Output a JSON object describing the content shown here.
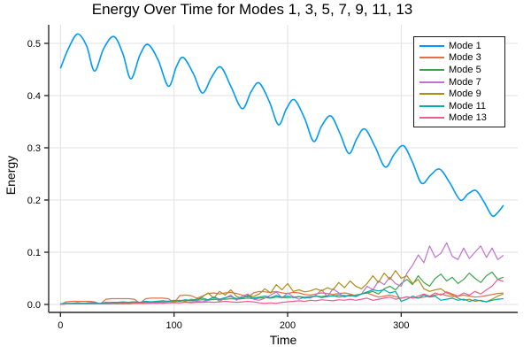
{
  "figure": {
    "background": "#ffffff",
    "grid_color": "#e2e2e6",
    "spine_color": "#2a2a2a",
    "text_color": "#000000"
  },
  "chart_data": {
    "type": "line",
    "title": "Energy Over Time for Modes 1, 3, 5, 7, 9, 11, 13",
    "xlabel": "Time",
    "ylabel": "Energy",
    "xlim": [
      -10.4,
      402.6
    ],
    "ylim": [
      -0.01525,
      0.5356
    ],
    "xticks": {
      "values": [
        0,
        100,
        200,
        300
      ],
      "labels": [
        "0",
        "100",
        "200",
        "300"
      ]
    },
    "yticks": {
      "values": [
        0.0,
        0.1,
        0.2,
        0.3,
        0.4,
        0.5
      ],
      "labels": [
        "0.0",
        "0.1",
        "0.2",
        "0.3",
        "0.4",
        "0.5"
      ]
    },
    "grid": true,
    "legend_position": "top-right",
    "series": [
      {
        "name": "Mode 1",
        "color": "#009af9",
        "width": 1.6,
        "smooth": true,
        "points": [
          [
            0,
            0.452
          ],
          [
            7,
            0.49
          ],
          [
            15,
            0.518
          ],
          [
            23,
            0.495
          ],
          [
            30,
            0.447
          ],
          [
            38,
            0.49
          ],
          [
            47,
            0.513
          ],
          [
            55,
            0.48
          ],
          [
            62,
            0.432
          ],
          [
            70,
            0.478
          ],
          [
            77,
            0.498
          ],
          [
            86,
            0.468
          ],
          [
            95,
            0.418
          ],
          [
            102,
            0.455
          ],
          [
            108,
            0.473
          ],
          [
            117,
            0.442
          ],
          [
            125,
            0.405
          ],
          [
            133,
            0.435
          ],
          [
            141,
            0.455
          ],
          [
            150,
            0.418
          ],
          [
            160,
            0.375
          ],
          [
            168,
            0.408
          ],
          [
            175,
            0.424
          ],
          [
            184,
            0.388
          ],
          [
            192,
            0.344
          ],
          [
            199,
            0.375
          ],
          [
            206,
            0.392
          ],
          [
            215,
            0.356
          ],
          [
            223,
            0.312
          ],
          [
            230,
            0.342
          ],
          [
            238,
            0.361
          ],
          [
            246,
            0.328
          ],
          [
            254,
            0.289
          ],
          [
            261,
            0.318
          ],
          [
            268,
            0.336
          ],
          [
            277,
            0.302
          ],
          [
            286,
            0.263
          ],
          [
            294,
            0.288
          ],
          [
            302,
            0.304
          ],
          [
            310,
            0.272
          ],
          [
            318,
            0.232
          ],
          [
            326,
            0.248
          ],
          [
            334,
            0.259
          ],
          [
            343,
            0.232
          ],
          [
            352,
            0.2
          ],
          [
            359,
            0.212
          ],
          [
            366,
            0.218
          ],
          [
            373,
            0.196
          ],
          [
            380,
            0.17
          ],
          [
            385,
            0.176
          ],
          [
            390,
            0.19
          ]
        ]
      },
      {
        "name": "Mode 3",
        "color": "#e26f46",
        "width": 1.2,
        "smooth": false,
        "t0": 0,
        "dt": 5,
        "values": [
          0.0,
          0.005,
          0.006,
          0.006,
          0.006,
          0.006,
          0.005,
          0.001,
          0.01,
          0.011,
          0.011,
          0.011,
          0.011,
          0.01,
          0.002,
          0.011,
          0.012,
          0.012,
          0.012,
          0.011,
          0.003,
          0.017,
          0.018,
          0.017,
          0.012,
          0.016,
          0.021,
          0.022,
          0.02,
          0.022,
          0.023,
          0.021,
          0.018,
          0.014,
          0.022,
          0.025,
          0.024,
          0.023,
          0.025,
          0.022,
          0.021,
          0.023,
          0.022,
          0.019,
          0.018,
          0.02,
          0.022,
          0.021,
          0.019,
          0.021,
          0.022,
          0.02,
          0.017,
          0.02,
          0.022,
          0.018,
          0.014,
          0.016,
          0.018,
          0.015,
          0.012,
          0.014,
          0.013,
          0.012,
          0.014,
          0.016,
          0.018,
          0.02,
          0.017,
          0.015,
          0.016,
          0.018,
          0.016,
          0.014,
          0.015,
          0.017,
          0.019,
          0.021,
          0.022
        ]
      },
      {
        "name": "Mode 5",
        "color": "#3da44d",
        "width": 1.2,
        "smooth": false,
        "t0": 0,
        "dt": 5,
        "values": [
          0.001,
          0.002,
          0.002,
          0.003,
          0.002,
          0.003,
          0.003,
          0.002,
          0.003,
          0.004,
          0.004,
          0.003,
          0.004,
          0.005,
          0.004,
          0.005,
          0.005,
          0.006,
          0.005,
          0.006,
          0.007,
          0.006,
          0.008,
          0.007,
          0.008,
          0.009,
          0.008,
          0.01,
          0.009,
          0.01,
          0.011,
          0.01,
          0.011,
          0.012,
          0.011,
          0.012,
          0.013,
          0.012,
          0.014,
          0.013,
          0.013,
          0.014,
          0.015,
          0.014,
          0.015,
          0.016,
          0.015,
          0.017,
          0.016,
          0.018,
          0.017,
          0.016,
          0.018,
          0.02,
          0.022,
          0.025,
          0.02,
          0.03,
          0.035,
          0.028,
          0.04,
          0.048,
          0.038,
          0.055,
          0.042,
          0.035,
          0.05,
          0.058,
          0.045,
          0.052,
          0.04,
          0.048,
          0.06,
          0.05,
          0.042,
          0.055,
          0.062,
          0.048,
          0.052
        ]
      },
      {
        "name": "Mode 7",
        "color": "#c271d2",
        "width": 1.2,
        "smooth": false,
        "t0": 0,
        "dt": 5,
        "values": [
          0.0,
          0.001,
          0.001,
          0.001,
          0.001,
          0.001,
          0.001,
          0.001,
          0.001,
          0.001,
          0.002,
          0.001,
          0.002,
          0.002,
          0.002,
          0.002,
          0.003,
          0.002,
          0.003,
          0.003,
          0.004,
          0.003,
          0.005,
          0.004,
          0.006,
          0.005,
          0.008,
          0.014,
          0.006,
          0.012,
          0.018,
          0.008,
          0.016,
          0.02,
          0.01,
          0.008,
          0.012,
          0.018,
          0.024,
          0.012,
          0.022,
          0.015,
          0.01,
          0.014,
          0.012,
          0.018,
          0.028,
          0.015,
          0.03,
          0.022,
          0.014,
          0.018,
          0.016,
          0.02,
          0.035,
          0.028,
          0.045,
          0.038,
          0.052,
          0.04,
          0.035,
          0.06,
          0.075,
          0.095,
          0.08,
          0.112,
          0.09,
          0.098,
          0.118,
          0.092,
          0.086,
          0.108,
          0.088,
          0.1,
          0.112,
          0.09,
          0.108,
          0.086,
          0.094
        ]
      },
      {
        "name": "Mode 9",
        "color": "#ac8d18",
        "width": 1.2,
        "smooth": false,
        "t0": 0,
        "dt": 5,
        "values": [
          0.0,
          0.001,
          0.001,
          0.002,
          0.001,
          0.002,
          0.002,
          0.001,
          0.002,
          0.003,
          0.002,
          0.003,
          0.003,
          0.004,
          0.003,
          0.004,
          0.005,
          0.004,
          0.005,
          0.006,
          0.005,
          0.008,
          0.006,
          0.01,
          0.008,
          0.015,
          0.022,
          0.012,
          0.025,
          0.018,
          0.028,
          0.015,
          0.012,
          0.018,
          0.015,
          0.02,
          0.03,
          0.022,
          0.038,
          0.028,
          0.04,
          0.025,
          0.028,
          0.024,
          0.026,
          0.03,
          0.026,
          0.032,
          0.028,
          0.042,
          0.032,
          0.045,
          0.035,
          0.03,
          0.04,
          0.055,
          0.042,
          0.06,
          0.048,
          0.065,
          0.05,
          0.055,
          0.04,
          0.048,
          0.03,
          0.025,
          0.028,
          0.03,
          0.022,
          0.018,
          0.012,
          0.008,
          0.01,
          0.006,
          0.008,
          0.005,
          0.01,
          0.016,
          0.02
        ]
      },
      {
        "name": "Mode 11",
        "color": "#00a9ad",
        "width": 1.2,
        "smooth": false,
        "t0": 0,
        "dt": 5,
        "values": [
          0.001,
          0.002,
          0.002,
          0.003,
          0.002,
          0.003,
          0.003,
          0.002,
          0.004,
          0.003,
          0.004,
          0.005,
          0.004,
          0.005,
          0.004,
          0.006,
          0.005,
          0.006,
          0.007,
          0.006,
          0.008,
          0.007,
          0.009,
          0.008,
          0.01,
          0.012,
          0.009,
          0.014,
          0.01,
          0.013,
          0.015,
          0.011,
          0.013,
          0.016,
          0.012,
          0.014,
          0.016,
          0.013,
          0.017,
          0.014,
          0.016,
          0.013,
          0.015,
          0.012,
          0.014,
          0.016,
          0.013,
          0.015,
          0.017,
          0.014,
          0.016,
          0.018,
          0.015,
          0.02,
          0.024,
          0.028,
          0.026,
          0.028,
          0.022,
          0.025,
          0.006,
          0.01,
          0.016,
          0.012,
          0.018,
          0.014,
          0.016,
          0.008,
          0.01,
          0.012,
          0.008,
          0.01,
          0.006,
          0.009,
          0.007,
          0.005,
          0.008,
          0.01,
          0.011
        ]
      },
      {
        "name": "Mode 13",
        "color": "#ed5d92",
        "width": 1.2,
        "smooth": false,
        "t0": 0,
        "dt": 5,
        "values": [
          0.0,
          0.001,
          0.001,
          0.001,
          0.001,
          0.001,
          0.001,
          0.001,
          0.001,
          0.002,
          0.001,
          0.002,
          0.001,
          0.002,
          0.002,
          0.002,
          0.002,
          0.003,
          0.002,
          0.003,
          0.003,
          0.003,
          0.004,
          0.003,
          0.004,
          0.004,
          0.005,
          0.004,
          0.005,
          0.006,
          0.005,
          0.004,
          0.005,
          0.006,
          0.005,
          0.003,
          0.002,
          0.003,
          0.002,
          0.004,
          0.005,
          0.006,
          0.007,
          0.006,
          0.008,
          0.007,
          0.009,
          0.008,
          0.007,
          0.009,
          0.008,
          0.01,
          0.008,
          0.01,
          0.012,
          0.008,
          0.01,
          0.012,
          0.014,
          0.01,
          0.012,
          0.015,
          0.012,
          0.016,
          0.02,
          0.016,
          0.022,
          0.018,
          0.024,
          0.02,
          0.016,
          0.022,
          0.018,
          0.025,
          0.02,
          0.028,
          0.035,
          0.048,
          0.044
        ]
      }
    ]
  },
  "legend": {
    "entries": [
      {
        "label": "Mode 1",
        "color": "#009af9"
      },
      {
        "label": "Mode 3",
        "color": "#e26f46"
      },
      {
        "label": "Mode 5",
        "color": "#3da44d"
      },
      {
        "label": "Mode 7",
        "color": "#c271d2"
      },
      {
        "label": "Mode 9",
        "color": "#ac8d18"
      },
      {
        "label": "Mode 11",
        "color": "#00a9ad"
      },
      {
        "label": "Mode 13",
        "color": "#ed5d92"
      }
    ]
  }
}
